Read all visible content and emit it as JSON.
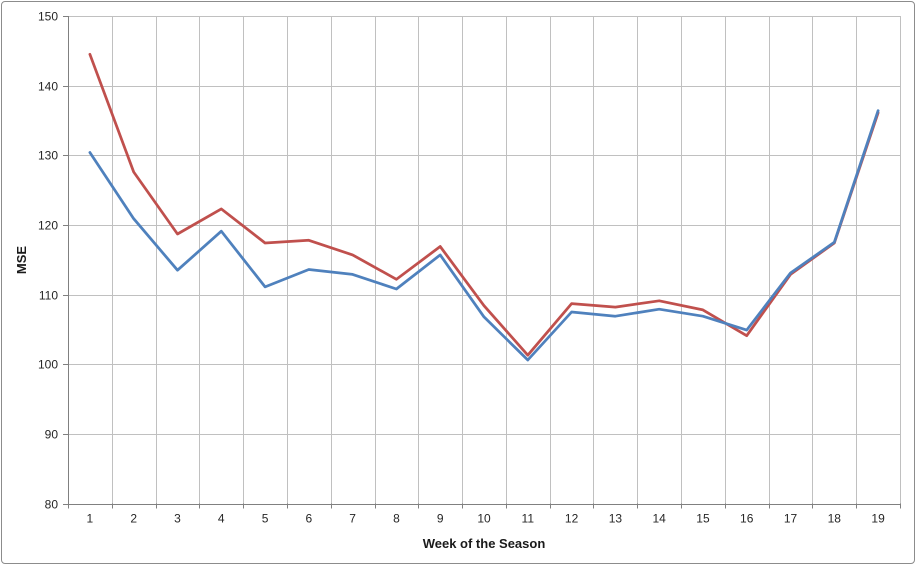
{
  "chart_data": {
    "type": "line",
    "title": "",
    "xlabel": "Week of the Season",
    "ylabel": "MSE",
    "x": [
      1,
      2,
      3,
      4,
      5,
      6,
      7,
      8,
      9,
      10,
      11,
      12,
      13,
      14,
      15,
      16,
      17,
      18,
      19
    ],
    "ylim": [
      80,
      150
    ],
    "ytick_step": 10,
    "yticks": [
      80,
      90,
      100,
      110,
      120,
      130,
      140,
      150
    ],
    "grid": true,
    "legend_position": "none",
    "series": [
      {
        "name": "red-series",
        "color": "#C0504D",
        "values": [
          144.5,
          127.6,
          118.7,
          122.3,
          117.4,
          117.8,
          115.7,
          112.2,
          116.9,
          108.4,
          101.3,
          108.7,
          108.2,
          109.1,
          107.8,
          104.1,
          112.9,
          117.4,
          136.1
        ]
      },
      {
        "name": "blue-series",
        "color": "#4F81BD",
        "values": [
          130.4,
          120.9,
          113.5,
          119.1,
          111.1,
          113.6,
          112.9,
          110.8,
          115.7,
          106.8,
          100.6,
          107.5,
          106.9,
          107.9,
          106.9,
          104.9,
          113.1,
          117.5,
          136.4
        ]
      }
    ],
    "colors": {
      "gridline": "#C0C0C0",
      "axis": "#808080",
      "label_text": "#262626"
    }
  }
}
